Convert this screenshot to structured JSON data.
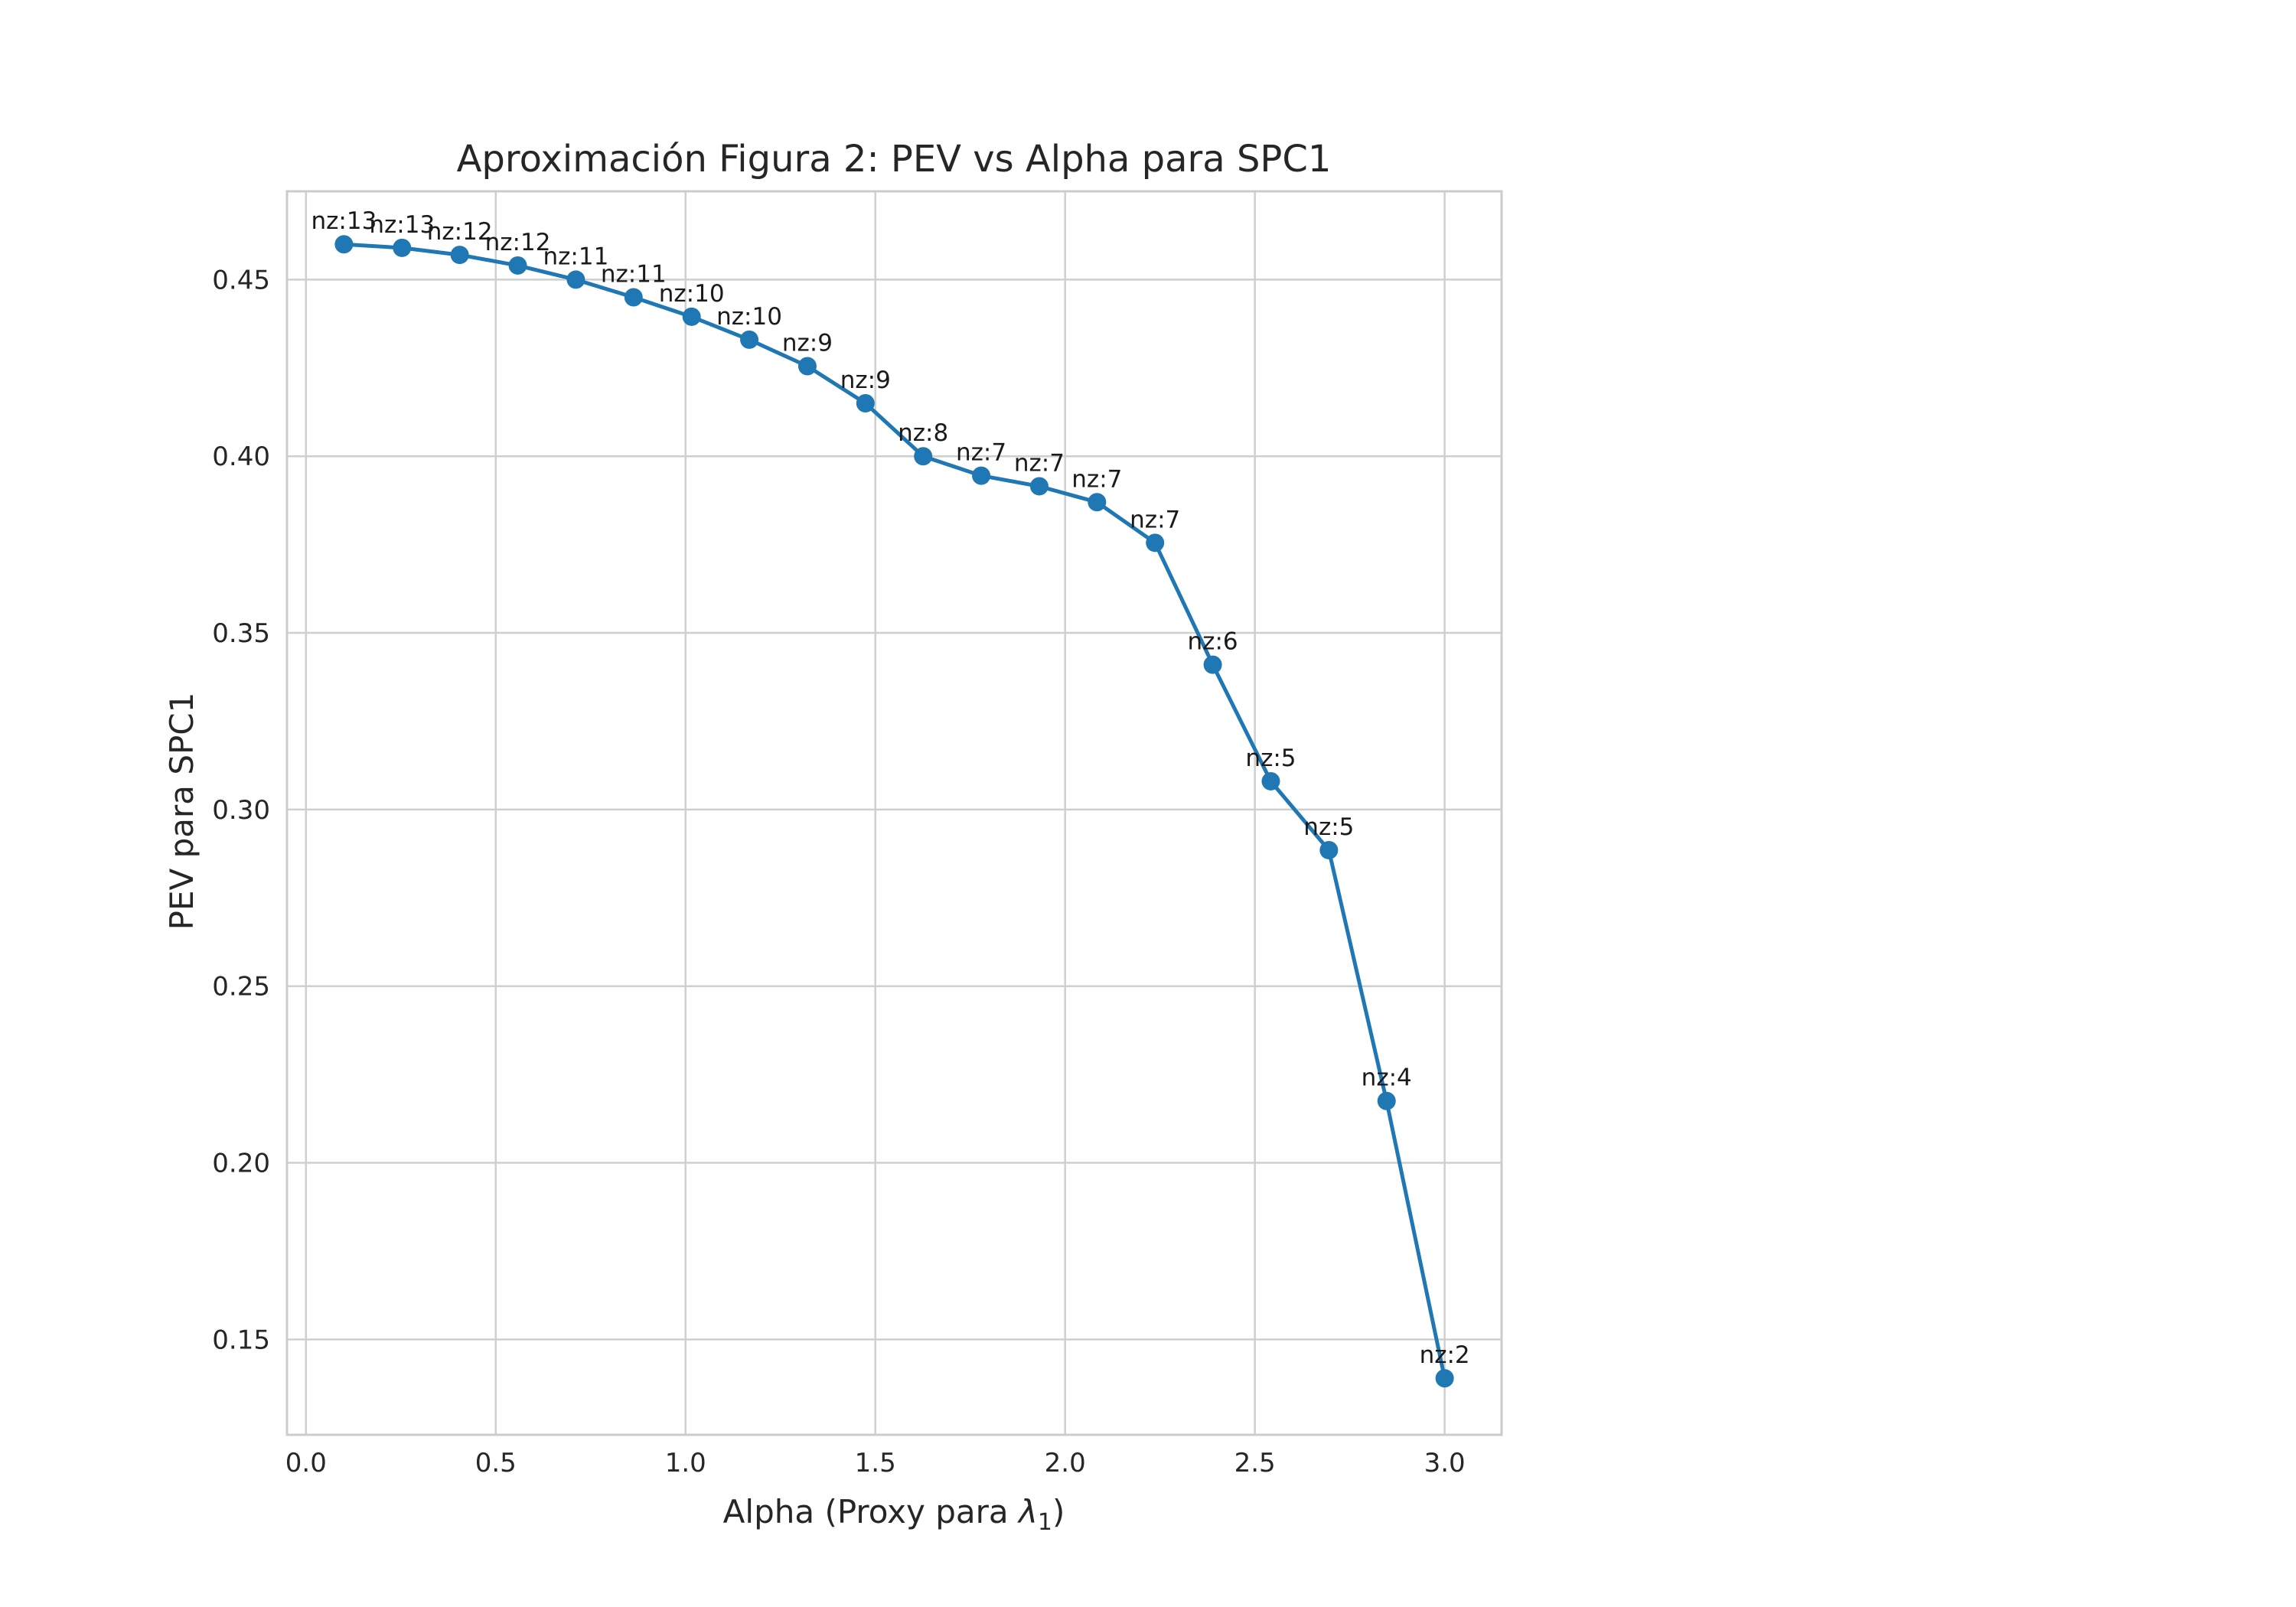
{
  "chart_data": {
    "type": "line",
    "title": "Aproximación Figura 2: PEV vs Alpha para SPC1",
    "xlabel_prefix": "Alpha (Proxy para ",
    "xlabel_lambda": "λ",
    "xlabel_sub": "1",
    "xlabel_suffix": ")",
    "ylabel": "PEV para SPC1",
    "xlim": [
      -0.05,
      3.15
    ],
    "ylim": [
      0.123,
      0.475
    ],
    "xticks": [
      0.0,
      0.5,
      1.0,
      1.5,
      2.0,
      2.5,
      3.0
    ],
    "xtick_labels": [
      "0.0",
      "0.5",
      "1.0",
      "1.5",
      "2.0",
      "2.5",
      "3.0"
    ],
    "yticks": [
      0.15,
      0.2,
      0.25,
      0.3,
      0.35,
      0.4,
      0.45
    ],
    "ytick_labels": [
      "0.15",
      "0.20",
      "0.25",
      "0.30",
      "0.35",
      "0.40",
      "0.45"
    ],
    "grid": true,
    "color": "#1f77b4",
    "series": [
      {
        "x": [
          0.1,
          0.253,
          0.405,
          0.558,
          0.711,
          0.863,
          1.016,
          1.168,
          1.321,
          1.474,
          1.626,
          1.779,
          1.932,
          2.084,
          2.237,
          2.389,
          2.542,
          2.695,
          2.847,
          3.0
        ],
        "y": [
          0.46,
          0.459,
          0.457,
          0.454,
          0.45,
          0.445,
          0.4395,
          0.433,
          0.4255,
          0.415,
          0.4,
          0.3945,
          0.3915,
          0.387,
          0.3755,
          0.341,
          0.308,
          0.2885,
          0.2175,
          0.139
        ],
        "annotations": [
          "nz:13",
          "nz:13",
          "nz:12",
          "nz:12",
          "nz:11",
          "nz:11",
          "nz:10",
          "nz:10",
          "nz:9",
          "nz:9",
          "nz:8",
          "nz:7",
          "nz:7",
          "nz:7",
          "nz:7",
          "nz:6",
          "nz:5",
          "nz:5",
          "nz:4",
          "nz:2"
        ]
      }
    ]
  }
}
